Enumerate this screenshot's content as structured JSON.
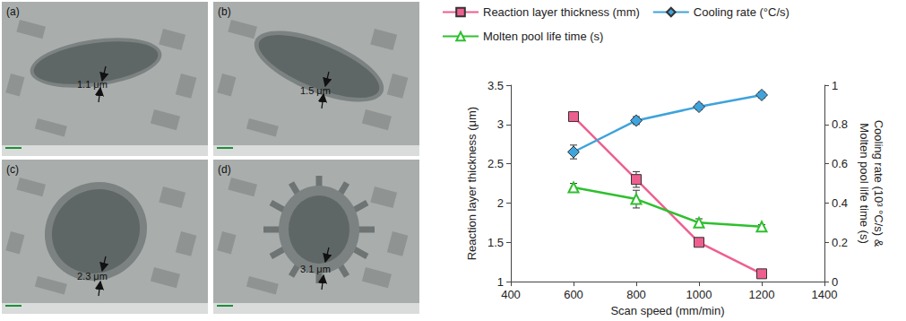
{
  "chart_data": {
    "type": "line",
    "x": [
      600,
      800,
      1000,
      1200
    ],
    "xlabel": "Scan speed (mm/min)",
    "ylabel": "Reaction layer thickness (μm)",
    "y2label": "Cooling rate (10³ °C/s) &\nMolten pool life time (s)",
    "xlim": [
      400,
      1400
    ],
    "xticks": [
      400,
      600,
      800,
      1000,
      1200,
      1400
    ],
    "ylim": [
      1,
      3.5
    ],
    "yticks": [
      1,
      1.5,
      2,
      2.5,
      3,
      3.5
    ],
    "y2lim": [
      0,
      1
    ],
    "y2ticks": [
      0,
      0.2,
      0.4,
      0.6,
      0.8,
      1
    ],
    "grid": false,
    "legend": "top",
    "series": [
      {
        "name": "Reaction layer thickness (mm)",
        "color": "#ee5f8f",
        "marker": "square",
        "values": [
          3.1,
          2.3,
          1.5,
          1.1
        ],
        "errors": [
          0.03,
          0.1,
          0.03,
          0.03
        ]
      },
      {
        "name": "Cooling rate (°C/s)",
        "color": "#3fa3dc",
        "marker": "diamond",
        "axis": "y2",
        "values": [
          0.66,
          0.82,
          0.89,
          0.95
        ],
        "errors": [
          0.035,
          0.02,
          0.015,
          0.015
        ]
      },
      {
        "name": "Molten pool life time (s)",
        "color": "#2ec02e",
        "marker": "open_triangle",
        "axis": "y2",
        "values": [
          0.48,
          0.42,
          0.3,
          0.28
        ],
        "errors": [
          0.02,
          0.045,
          0.02,
          0.01
        ]
      }
    ]
  },
  "micrographs": {
    "panels": [
      {
        "label": "(a)",
        "measurement": "1.1 μm"
      },
      {
        "label": "(b)",
        "measurement": "1.5 μm"
      },
      {
        "label": "(c)",
        "measurement": "2.3 μm"
      },
      {
        "label": "(d)",
        "measurement": "3.1 μm"
      }
    ]
  }
}
